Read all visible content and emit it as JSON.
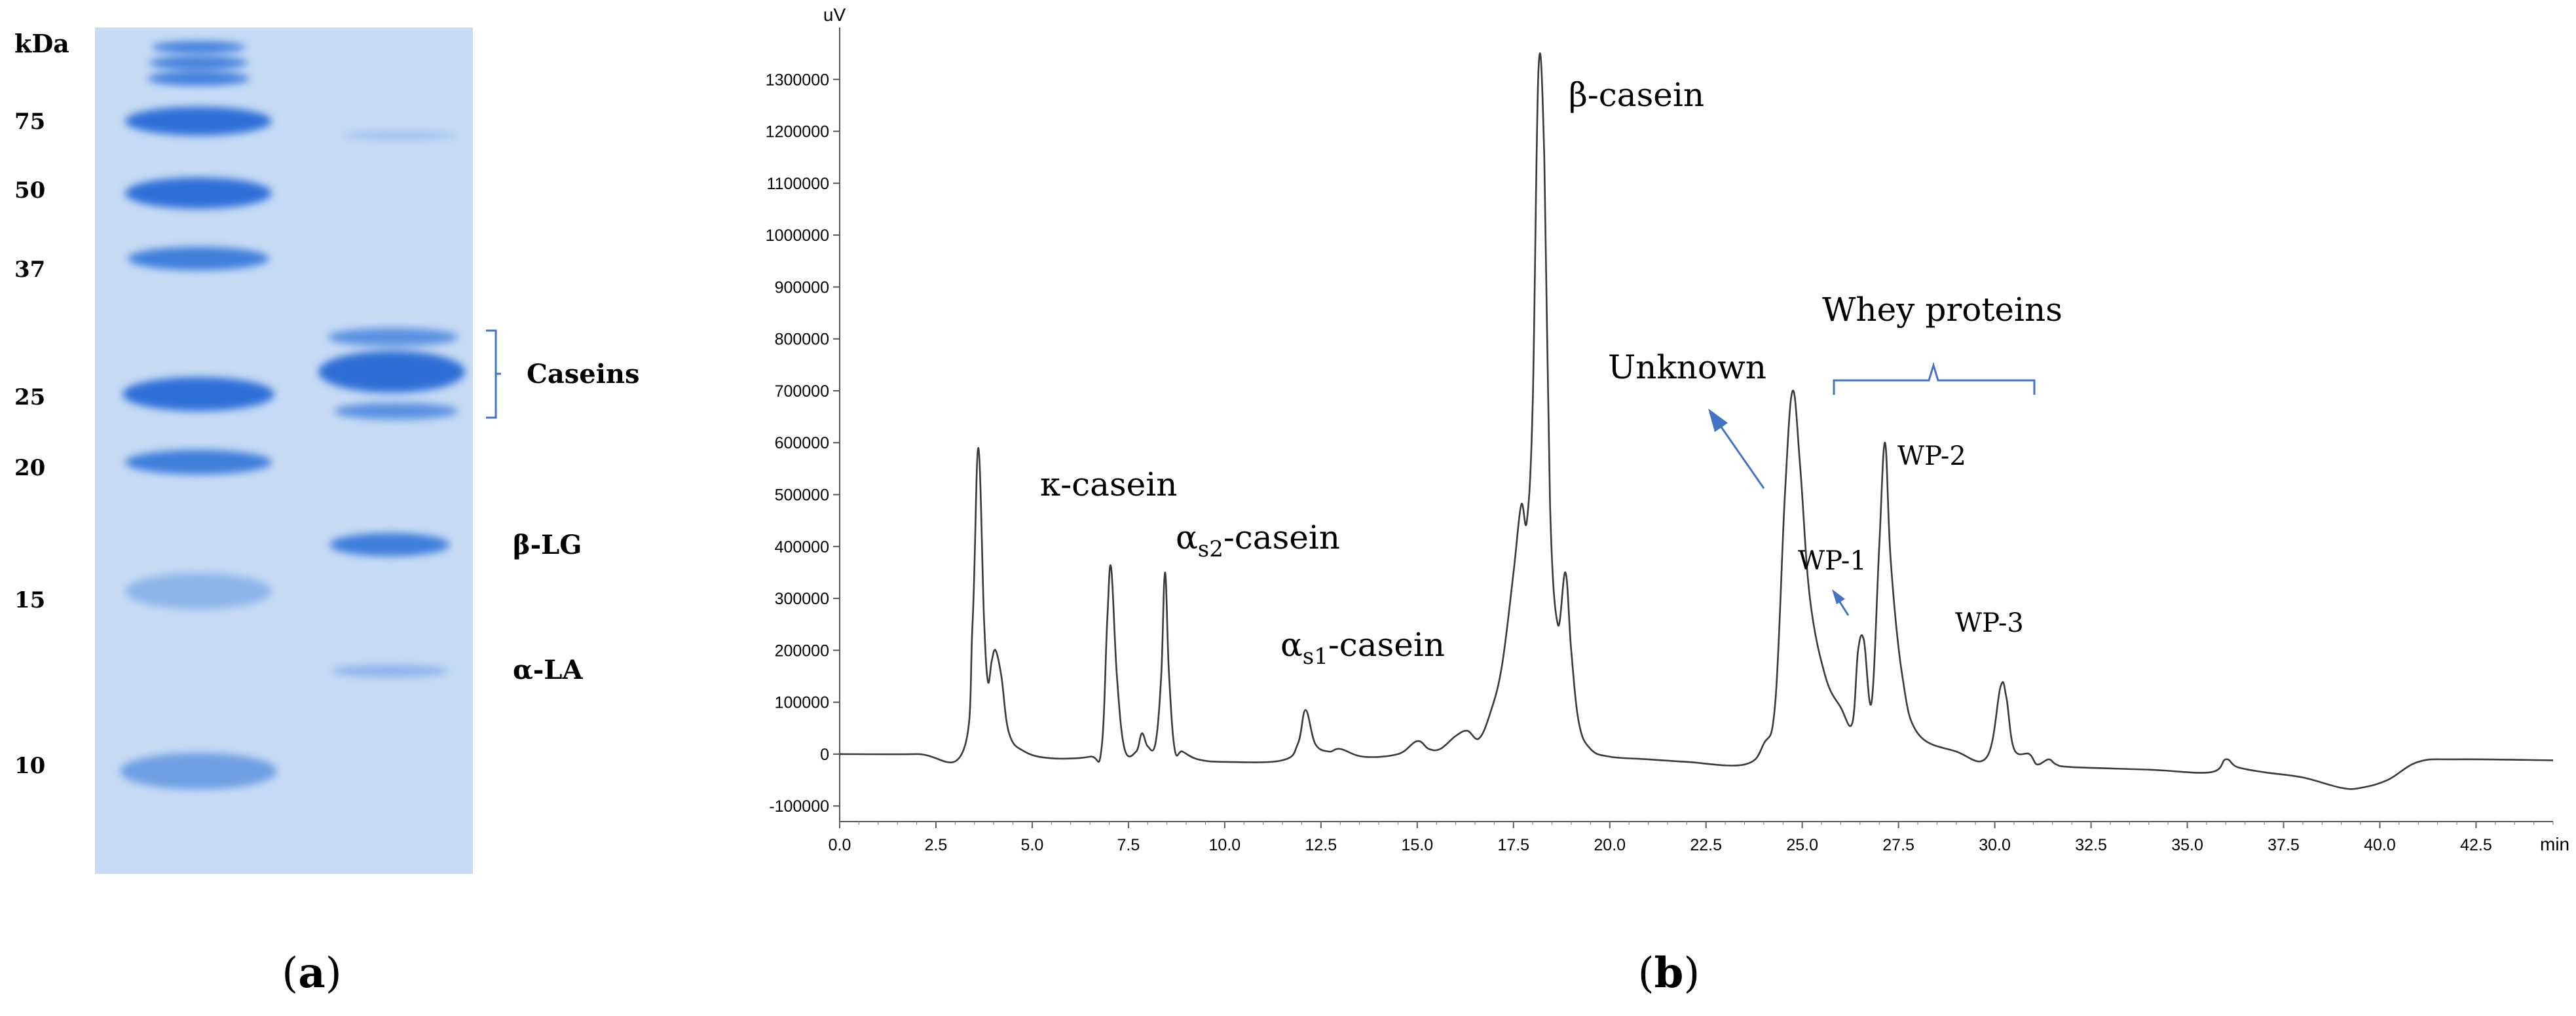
{
  "panel_a": {
    "kda_label": "kDa",
    "ladder_labels": [
      "75",
      "50",
      "37",
      "25",
      "20",
      "15",
      "10"
    ],
    "sample_labels": [
      "Caseins",
      "β-LG",
      "α-LA"
    ],
    "caption": "a"
  },
  "panel_b": {
    "caption": "b",
    "annotations": {
      "kappa": "κ-casein",
      "alpha_s2": "αs2-casein",
      "alpha_s1": "αs1-casein",
      "beta": "β-casein",
      "unknown": "Unknown",
      "whey": "Whey proteins",
      "wp1": "WP-1",
      "wp2": "WP-2",
      "wp3": "WP-3"
    }
  },
  "colors": {
    "gel_background": "#c7dbf5",
    "band": "#3f7fdc",
    "annotation": "#4472c4",
    "trace": "#3a3a3a"
  },
  "chart_data": {
    "type": "line",
    "title": "",
    "xlabel": "min",
    "ylabel": "uV",
    "xlim": [
      0.0,
      44.5
    ],
    "ylim": [
      -130000,
      1400000
    ],
    "x_ticks": [
      "0.0",
      "2.5",
      "5.0",
      "7.5",
      "10.0",
      "12.5",
      "15.0",
      "17.5",
      "20.0",
      "22.5",
      "25.0",
      "27.5",
      "30.0",
      "32.5",
      "35.0",
      "37.5",
      "40.0",
      "42.5"
    ],
    "y_ticks": [
      "1300000",
      "1200000",
      "1100000",
      "1000000",
      "900000",
      "800000",
      "700000",
      "600000",
      "500000",
      "400000",
      "300000",
      "200000",
      "100000",
      "0",
      "-100000"
    ],
    "grid": false,
    "series": [
      {
        "name": "",
        "x": [
          0.0,
          2.0,
          3.2,
          3.45,
          3.6,
          3.75,
          3.85,
          3.95,
          4.05,
          4.2,
          4.4,
          4.8,
          5.5,
          6.5,
          6.8,
          6.95,
          7.05,
          7.2,
          7.4,
          7.7,
          7.85,
          8.0,
          8.2,
          8.35,
          8.45,
          8.55,
          8.7,
          8.9,
          9.3,
          10.0,
          11.5,
          11.9,
          12.1,
          12.35,
          12.7,
          13.0,
          13.6,
          14.5,
          15.0,
          15.3,
          15.6,
          16.0,
          16.3,
          16.6,
          16.9,
          17.2,
          17.5,
          17.7,
          17.85,
          18.0,
          18.15,
          18.3,
          18.45,
          18.65,
          18.85,
          19.0,
          19.2,
          19.5,
          20.0,
          21.0,
          22.0,
          23.5,
          24.0,
          24.3,
          24.55,
          24.75,
          24.95,
          25.2,
          25.6,
          26.0,
          26.3,
          26.45,
          26.6,
          26.8,
          27.0,
          27.15,
          27.3,
          27.6,
          28.0,
          29.0,
          29.8,
          30.15,
          30.3,
          30.5,
          30.9,
          31.1,
          31.4,
          31.6,
          32.0,
          34.0,
          35.6,
          36.0,
          36.3,
          37.0,
          38.0,
          39.0,
          39.5,
          40.2,
          41.0,
          42.0,
          44.5
        ],
        "y": [
          0,
          0,
          5000,
          250000,
          590000,
          260000,
          140000,
          180000,
          200000,
          150000,
          40000,
          5000,
          -8000,
          -5000,
          10000,
          260000,
          360000,
          150000,
          10000,
          5000,
          40000,
          15000,
          20000,
          150000,
          350000,
          160000,
          10000,
          5000,
          -10000,
          -15000,
          -12000,
          20000,
          85000,
          20000,
          5000,
          10000,
          -5000,
          0,
          25000,
          10000,
          10000,
          35000,
          45000,
          30000,
          80000,
          170000,
          350000,
          480000,
          450000,
          680000,
          1320000,
          1150000,
          480000,
          250000,
          350000,
          200000,
          60000,
          10000,
          -5000,
          -10000,
          -15000,
          -20000,
          20000,
          100000,
          500000,
          700000,
          550000,
          300000,
          150000,
          90000,
          60000,
          200000,
          220000,
          100000,
          400000,
          600000,
          370000,
          150000,
          40000,
          5000,
          -5000,
          130000,
          110000,
          10000,
          0,
          -20000,
          -10000,
          -20000,
          -25000,
          -30000,
          -35000,
          -10000,
          -25000,
          -35000,
          -45000,
          -65000,
          -65000,
          -50000,
          -15000,
          -10000,
          -12000
        ]
      }
    ]
  }
}
